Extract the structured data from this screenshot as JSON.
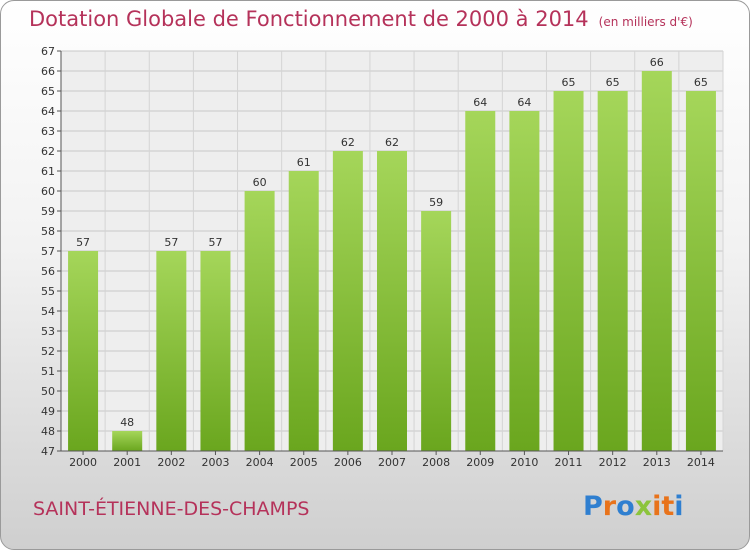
{
  "header": {
    "title": "Dotation Globale de Fonctionnement de 2000 à 2014",
    "unit": "(en milliers d'€)"
  },
  "footer": {
    "commune": "SAINT-ÉTIENNE-DES-CHAMPS",
    "logo_letters": [
      "P",
      "r",
      "o",
      "x",
      "i",
      "t",
      "i"
    ]
  },
  "colors": {
    "title": "#b5325a",
    "bar_light": "#a5d65a",
    "bar_dark": "#6aa61e",
    "logo": [
      "#2f7fd0",
      "#e8731b",
      "#2f7fd0",
      "#8cc43c",
      "#e8731b",
      "#e8731b",
      "#2f7fd0"
    ]
  },
  "chart_data": {
    "type": "bar",
    "title": "Dotation Globale de Fonctionnement de 2000 à 2014",
    "ylabel": "",
    "xlabel": "",
    "categories": [
      "2000",
      "2001",
      "2002",
      "2003",
      "2004",
      "2005",
      "2006",
      "2007",
      "2008",
      "2009",
      "2010",
      "2011",
      "2012",
      "2013",
      "2014"
    ],
    "values": [
      57,
      48,
      57,
      57,
      60,
      61,
      62,
      62,
      59,
      64,
      64,
      65,
      65,
      66,
      65
    ],
    "ylim": [
      47,
      67
    ],
    "yticks": [
      47,
      48,
      49,
      50,
      51,
      52,
      53,
      54,
      55,
      56,
      57,
      58,
      59,
      60,
      61,
      62,
      63,
      64,
      65,
      66,
      67
    ],
    "grid": true
  }
}
